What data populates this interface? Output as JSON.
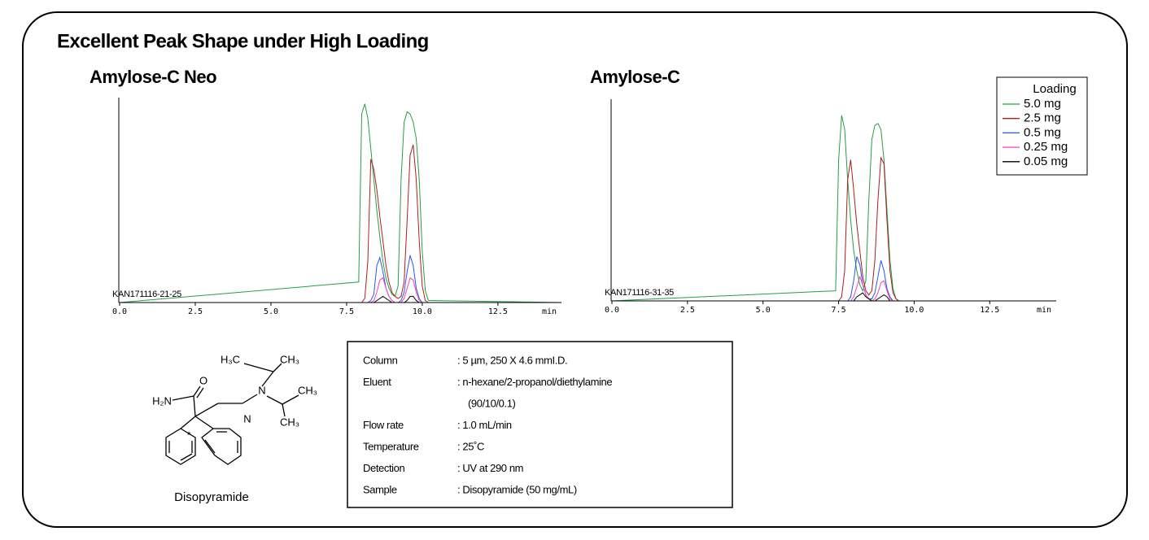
{
  "header": {
    "title": "Excellent Peak Shape under High Loading"
  },
  "chart_data": [
    {
      "type": "line",
      "title": "Amylose-C Neo",
      "title_color": "#ff0000",
      "annotation": "KAN171116-21-25",
      "x_label": "min",
      "xlim": [
        0,
        14.6
      ],
      "ylim": [
        0,
        100
      ],
      "xticks": [
        {
          "value": 0,
          "label": "0.0"
        },
        2.5,
        {
          "value": 5,
          "label": "5.0"
        },
        7.5,
        {
          "value": 10,
          "label": "10.0"
        },
        12.5
      ],
      "x": [
        0,
        7.9,
        8.0,
        8.1,
        8.2,
        8.3,
        8.4,
        8.5,
        8.6,
        8.7,
        8.8,
        8.9,
        9.0,
        9.1,
        9.2,
        9.3,
        9.4,
        9.5,
        9.6,
        9.7,
        9.8,
        9.9,
        10.0,
        10.1,
        10.2,
        14.6
      ],
      "series": [
        {
          "color": "#22a043",
          "values": [
            0,
            10,
            92,
            97,
            90,
            75,
            60,
            45,
            32,
            20,
            12,
            7,
            4,
            3,
            8,
            60,
            88,
            93,
            92,
            88,
            80,
            60,
            25,
            6,
            1,
            0
          ]
        },
        {
          "color": "#b01e1e",
          "values": [
            0,
            0,
            0,
            2,
            20,
            70,
            65,
            55,
            42,
            30,
            18,
            10,
            5,
            3,
            2,
            3,
            10,
            40,
            72,
            77,
            60,
            30,
            8,
            1,
            0,
            0
          ]
        },
        {
          "color": "#2a55f0",
          "values": [
            0,
            0,
            0,
            0,
            0,
            1,
            4,
            18,
            22,
            15,
            7,
            3,
            1,
            0,
            0,
            1,
            5,
            15,
            23,
            18,
            7,
            2,
            0,
            0,
            0,
            0
          ]
        },
        {
          "color": "#f040c0",
          "values": [
            0,
            0,
            0,
            0,
            0,
            0,
            1,
            5,
            11,
            12,
            7,
            3,
            1,
            0,
            0,
            0,
            2,
            7,
            12,
            11,
            5,
            1,
            0,
            0,
            0,
            0
          ]
        },
        {
          "color": "#000000",
          "values": [
            0,
            0,
            0,
            0,
            0,
            0,
            0,
            1,
            2,
            3,
            2,
            1,
            0,
            0,
            0,
            0,
            0,
            1,
            3,
            3,
            1,
            0,
            0,
            0,
            0,
            0
          ]
        }
      ]
    },
    {
      "type": "line",
      "title": "Amylose-C",
      "title_color": "#000000",
      "annotation": "KAN171116-31-35",
      "x_label": "min",
      "legend_title": "Loading",
      "xlim": [
        0,
        14.7
      ],
      "ylim": [
        0,
        100
      ],
      "xticks": [
        {
          "value": 0,
          "label": "0.0"
        },
        2.5,
        {
          "value": 5,
          "label": "5.0"
        },
        7.5,
        {
          "value": 10,
          "label": "10.0"
        },
        12.5
      ],
      "x": [
        0,
        7.4,
        7.5,
        7.6,
        7.7,
        7.8,
        7.9,
        8.0,
        8.1,
        8.2,
        8.3,
        8.4,
        8.5,
        8.6,
        8.7,
        8.8,
        8.9,
        9.0,
        9.1,
        9.2,
        9.3,
        9.4,
        9.5,
        9.6,
        14.7
      ],
      "series": [
        {
          "name": "5.0 mg",
          "color": "#22a043",
          "values": [
            0,
            5,
            70,
            92,
            85,
            60,
            40,
            25,
            15,
            8,
            5,
            10,
            50,
            80,
            87,
            88,
            85,
            70,
            45,
            20,
            6,
            1,
            0,
            0,
            0
          ]
        },
        {
          "name": "2.5 mg",
          "color": "#b01e1e",
          "values": [
            0,
            0,
            0,
            2,
            15,
            60,
            70,
            55,
            38,
            25,
            12,
            5,
            3,
            5,
            20,
            50,
            71,
            68,
            40,
            15,
            4,
            1,
            0,
            0,
            0
          ]
        },
        {
          "name": "0.5 mg",
          "color": "#2a55f0",
          "values": [
            0,
            0,
            0,
            0,
            0,
            0,
            2,
            10,
            22,
            18,
            8,
            3,
            1,
            1,
            4,
            12,
            20,
            15,
            6,
            2,
            0,
            0,
            0,
            0,
            0
          ]
        },
        {
          "name": "0.25 mg",
          "color": "#f040c0",
          "values": [
            0,
            0,
            0,
            0,
            0,
            0,
            0,
            2,
            7,
            12,
            8,
            3,
            1,
            0,
            1,
            4,
            9,
            10,
            5,
            1,
            0,
            0,
            0,
            0,
            0
          ]
        },
        {
          "name": "0.05 mg",
          "color": "#000000",
          "values": [
            0,
            0,
            0,
            0,
            0,
            0,
            0,
            0,
            2,
            3,
            4,
            2,
            1,
            0,
            0,
            1,
            2,
            3,
            2,
            0,
            0,
            0,
            0,
            0,
            0
          ]
        }
      ]
    }
  ],
  "molecule": {
    "name": "Disopyramide",
    "atoms": [
      "H₃C",
      "CH₃",
      "O",
      "N",
      "CH₃",
      "H₂N",
      "N",
      "*",
      "CH₃"
    ]
  },
  "conditions": {
    "rows": [
      {
        "label": "Column",
        "value": ": 5 µm, 250 X 4.6 mmI.D."
      },
      {
        "label": "Eluent",
        "value": ": n-hexane/2-propanol/diethylamine",
        "value2": "(90/10/0.1)"
      },
      {
        "label": "Flow rate",
        "value": ": 1.0 mL/min"
      },
      {
        "label": "Temperature",
        "value": ": 25˚C"
      },
      {
        "label": "Detection",
        "value": ": UV at 290 nm"
      },
      {
        "label": "Sample",
        "value": ": Disopyramide (50 mg/mL)"
      }
    ]
  }
}
